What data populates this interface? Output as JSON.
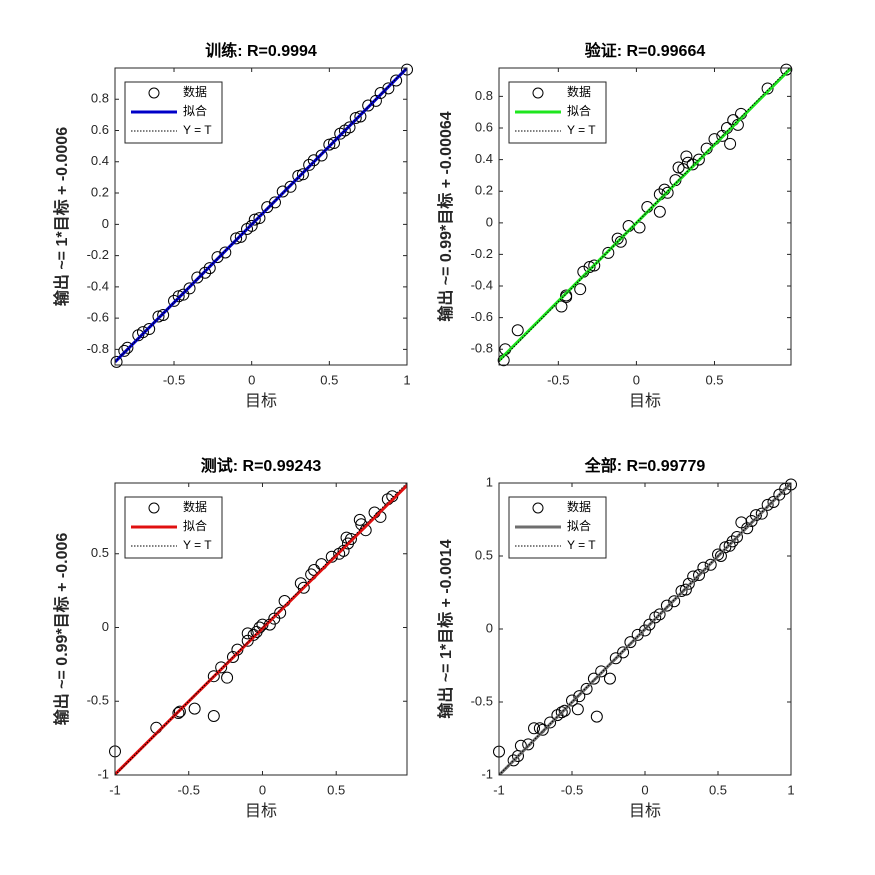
{
  "chart_data": [
    {
      "type": "scatter",
      "title": "训练: R=0.9994",
      "xlabel": "目标",
      "ylabel": "输出 ~= 1*目标 + -0.0006",
      "xlim": [
        -0.88,
        1
      ],
      "ylim": [
        -0.9,
        1.0
      ],
      "xticks": [
        -0.5,
        0,
        0.5,
        1
      ],
      "yticks": [
        -0.8,
        -0.6,
        -0.4,
        -0.2,
        0,
        0.2,
        0.4,
        0.6,
        0.8
      ],
      "series": [
        {
          "name": "数据",
          "color": "#000000",
          "marker": "o",
          "x": [
            -0.87,
            -0.82,
            -0.8,
            -0.73,
            -0.7,
            -0.66,
            -0.6,
            -0.57,
            -0.5,
            -0.47,
            -0.44,
            -0.4,
            -0.35,
            -0.3,
            -0.27,
            -0.22,
            -0.17,
            -0.1,
            -0.07,
            -0.03,
            0,
            0.02,
            0.05,
            0.1,
            0.15,
            0.2,
            0.25,
            0.3,
            0.33,
            0.37,
            0.4,
            0.45,
            0.5,
            0.53,
            0.57,
            0.6,
            0.63,
            0.67,
            0.7,
            0.75,
            0.8,
            0.83,
            0.88,
            0.93,
            1.0
          ],
          "values": [
            -0.88,
            -0.81,
            -0.79,
            -0.71,
            -0.69,
            -0.67,
            -0.59,
            -0.58,
            -0.49,
            -0.46,
            -0.45,
            -0.41,
            -0.34,
            -0.31,
            -0.28,
            -0.21,
            -0.18,
            -0.09,
            -0.08,
            -0.03,
            -0.01,
            0.03,
            0.04,
            0.11,
            0.14,
            0.21,
            0.24,
            0.31,
            0.32,
            0.38,
            0.41,
            0.44,
            0.51,
            0.52,
            0.58,
            0.6,
            0.62,
            0.68,
            0.69,
            0.76,
            0.79,
            0.84,
            0.87,
            0.92,
            0.99
          ]
        },
        {
          "name": "拟合",
          "color": "#0000c8",
          "line_style": "solid",
          "x": [
            -0.88,
            1
          ],
          "values": [
            -0.8806,
            0.9994
          ]
        },
        {
          "name": "Y = T",
          "color": "#000000",
          "line_style": "dotted",
          "x": [
            -0.88,
            1
          ],
          "values": [
            -0.88,
            1
          ]
        }
      ]
    },
    {
      "type": "scatter",
      "title": "验证: R=0.99664",
      "xlabel": "目标",
      "ylabel": "输出 ~= 0.99*目标 + -0.00064",
      "xlim": [
        -0.88,
        0.99
      ],
      "ylim": [
        -0.9,
        0.98
      ],
      "xticks": [
        -0.5,
        0,
        0.5
      ],
      "yticks": [
        -0.8,
        -0.6,
        -0.4,
        -0.2,
        0,
        0.2,
        0.4,
        0.6,
        0.8
      ],
      "series": [
        {
          "name": "数据",
          "color": "#000000",
          "marker": "o",
          "x": [
            -0.85,
            -0.84,
            -0.76,
            -0.48,
            -0.45,
            -0.45,
            -0.36,
            -0.34,
            -0.3,
            -0.27,
            -0.18,
            -0.12,
            -0.1,
            -0.05,
            0.02,
            0.07,
            0.15,
            0.15,
            0.18,
            0.2,
            0.25,
            0.27,
            0.3,
            0.32,
            0.33,
            0.36,
            0.4,
            0.45,
            0.5,
            0.55,
            0.58,
            0.6,
            0.62,
            0.65,
            0.67,
            0.84,
            0.96
          ],
          "values": [
            -0.87,
            -0.8,
            -0.68,
            -0.53,
            -0.47,
            -0.46,
            -0.42,
            -0.31,
            -0.28,
            -0.27,
            -0.19,
            -0.1,
            -0.12,
            -0.02,
            -0.03,
            0.1,
            0.07,
            0.18,
            0.21,
            0.19,
            0.27,
            0.35,
            0.34,
            0.42,
            0.38,
            0.37,
            0.4,
            0.47,
            0.53,
            0.55,
            0.6,
            0.5,
            0.65,
            0.62,
            0.69,
            0.85,
            0.97
          ]
        },
        {
          "name": "拟合",
          "color": "#1ee61e",
          "line_style": "solid",
          "x": [
            -0.88,
            0.99
          ],
          "values": [
            -0.87184,
            0.97946
          ]
        },
        {
          "name": "Y = T",
          "color": "#000000",
          "line_style": "dotted",
          "x": [
            -0.88,
            0.99
          ],
          "values": [
            -0.88,
            0.99
          ]
        }
      ]
    },
    {
      "type": "scatter",
      "title": "测试: R=0.99243",
      "xlabel": "目标",
      "ylabel": "输出 ~= 0.99*目标 + -0.006",
      "xlim": [
        -1,
        0.98
      ],
      "ylim": [
        -1,
        0.98
      ],
      "xticks": [
        -1,
        -0.5,
        0,
        0.5
      ],
      "yticks": [
        -1,
        -0.5,
        0,
        0.5
      ],
      "series": [
        {
          "name": "数据",
          "color": "#000000",
          "marker": "o",
          "x": [
            -1,
            -0.72,
            -0.57,
            -0.56,
            -0.46,
            -0.33,
            -0.33,
            -0.28,
            -0.24,
            -0.2,
            -0.17,
            -0.1,
            -0.1,
            -0.06,
            -0.04,
            -0.02,
            0,
            0.05,
            0.08,
            0.12,
            0.15,
            0.26,
            0.28,
            0.33,
            0.35,
            0.4,
            0.47,
            0.52,
            0.55,
            0.57,
            0.58,
            0.6,
            0.66,
            0.67,
            0.7,
            0.76,
            0.8,
            0.85,
            0.88
          ],
          "values": [
            -0.84,
            -0.68,
            -0.58,
            -0.57,
            -0.55,
            -0.33,
            -0.6,
            -0.27,
            -0.34,
            -0.2,
            -0.15,
            -0.09,
            -0.04,
            -0.05,
            -0.03,
            0,
            0.02,
            0.02,
            0.06,
            0.1,
            0.18,
            0.3,
            0.27,
            0.36,
            0.39,
            0.43,
            0.48,
            0.5,
            0.52,
            0.61,
            0.57,
            0.6,
            0.73,
            0.7,
            0.66,
            0.78,
            0.75,
            0.87,
            0.89
          ]
        },
        {
          "name": "拟合",
          "color": "#e01010",
          "line_style": "solid",
          "x": [
            -1,
            0.98
          ],
          "values": [
            -0.996,
            0.9642
          ]
        },
        {
          "name": "Y = T",
          "color": "#000000",
          "line_style": "dotted",
          "x": [
            -1,
            0.98
          ],
          "values": [
            -1,
            0.98
          ]
        }
      ]
    },
    {
      "type": "scatter",
      "title": "全部: R=0.99779",
      "xlabel": "目标",
      "ylabel": "输出 ~= 1*目标 + -0.0014",
      "xlim": [
        -1,
        1
      ],
      "ylim": [
        -1,
        1
      ],
      "xticks": [
        -1,
        -0.5,
        0,
        0.5,
        1
      ],
      "yticks": [
        -1,
        -0.5,
        0,
        0.5,
        1
      ],
      "series": [
        {
          "name": "数据",
          "color": "#000000",
          "marker": "o",
          "x": [
            -1,
            -0.9,
            -0.87,
            -0.85,
            -0.8,
            -0.76,
            -0.72,
            -0.7,
            -0.65,
            -0.6,
            -0.57,
            -0.55,
            -0.5,
            -0.46,
            -0.45,
            -0.4,
            -0.35,
            -0.33,
            -0.3,
            -0.24,
            -0.2,
            -0.15,
            -0.1,
            -0.05,
            0,
            0.03,
            0.07,
            0.1,
            0.15,
            0.2,
            0.25,
            0.28,
            0.3,
            0.33,
            0.37,
            0.4,
            0.45,
            0.5,
            0.52,
            0.55,
            0.58,
            0.6,
            0.63,
            0.66,
            0.7,
            0.73,
            0.76,
            0.8,
            0.84,
            0.88,
            0.92,
            0.96,
            1
          ],
          "values": [
            -0.84,
            -0.9,
            -0.87,
            -0.8,
            -0.79,
            -0.68,
            -0.68,
            -0.69,
            -0.64,
            -0.59,
            -0.57,
            -0.56,
            -0.49,
            -0.55,
            -0.46,
            -0.41,
            -0.34,
            -0.6,
            -0.29,
            -0.34,
            -0.2,
            -0.16,
            -0.09,
            -0.04,
            -0.01,
            0.03,
            0.08,
            0.1,
            0.16,
            0.19,
            0.26,
            0.27,
            0.31,
            0.36,
            0.37,
            0.42,
            0.44,
            0.51,
            0.5,
            0.56,
            0.57,
            0.6,
            0.63,
            0.73,
            0.69,
            0.74,
            0.78,
            0.79,
            0.85,
            0.87,
            0.92,
            0.96,
            0.99
          ]
        },
        {
          "name": "拟合",
          "color": "#6e6e6e",
          "line_style": "solid",
          "x": [
            -1,
            1
          ],
          "values": [
            -1.0014,
            0.9986
          ]
        },
        {
          "name": "Y = T",
          "color": "#000000",
          "line_style": "dotted",
          "x": [
            -1,
            1
          ],
          "values": [
            -1,
            1
          ]
        }
      ]
    }
  ]
}
